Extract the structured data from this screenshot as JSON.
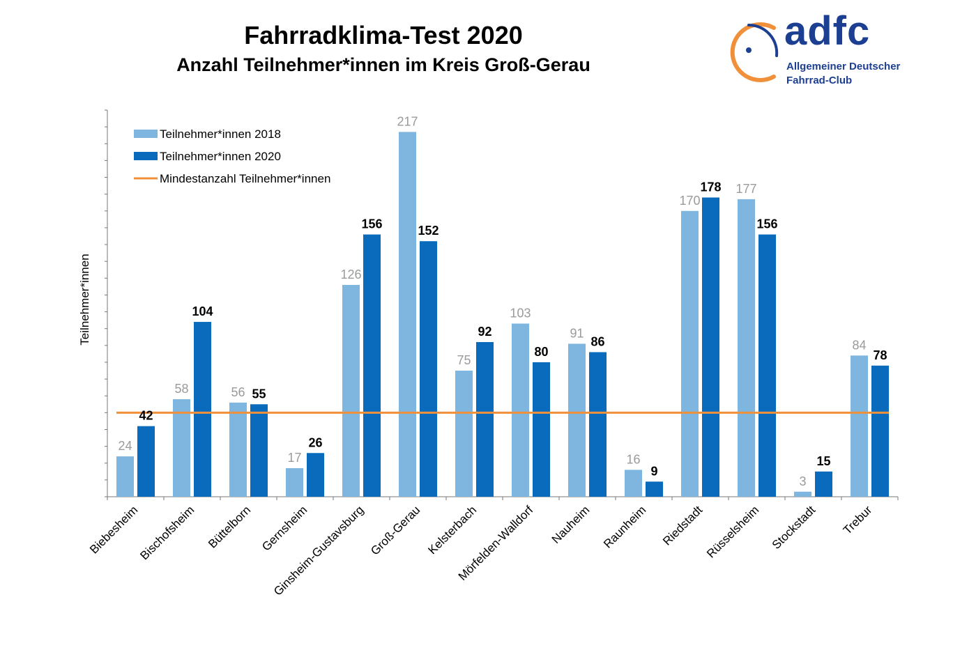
{
  "header": {
    "title": "Fahrradklima-Test 2020",
    "subtitle": "Anzahl Teilnehmer*innen im Kreis Groß-Gerau"
  },
  "logo": {
    "wordmark": "adfc",
    "line1": "Allgemeiner Deutscher",
    "line2": "Fahrrad-Club"
  },
  "colors": {
    "series_2018": "#7fb6e0",
    "series_2020": "#0a6bbd",
    "threshold": "#f0903a",
    "logo_blue": "#1c3f91",
    "logo_orange": "#f0903a"
  },
  "chart_data": {
    "type": "bar",
    "title": "",
    "xlabel": "",
    "ylabel": "Teilnehmer*innen",
    "ylim": [
      0,
      230
    ],
    "grid": false,
    "legend_position": "top-left",
    "categories": [
      "Biebesheim",
      "Bischofsheim",
      "Büttelborn",
      "Gernsheim",
      "Ginsheim-Gustavsburg",
      "Groß-Gerau",
      "Kelsterbach",
      "Mörfelden-Walldorf",
      "Nauheim",
      "Raunheim",
      "Riedstadt",
      "Rüsselsheim",
      "Stockstadt",
      "Trebur"
    ],
    "series": [
      {
        "name": "Teilnehmer*innen 2018",
        "values": [
          24,
          58,
          56,
          17,
          126,
          217,
          75,
          103,
          91,
          16,
          170,
          177,
          3,
          84
        ]
      },
      {
        "name": "Teilnehmer*innen 2020",
        "values": [
          42,
          104,
          55,
          26,
          156,
          152,
          92,
          80,
          86,
          9,
          178,
          156,
          15,
          78
        ]
      }
    ],
    "threshold": {
      "name": "Mindestanzahl Teilnehmer*innen",
      "value": 50
    }
  }
}
